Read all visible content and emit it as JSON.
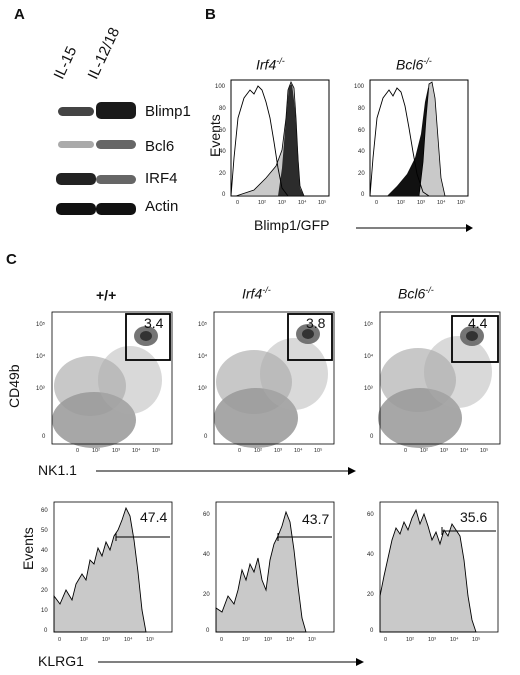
{
  "panels": {
    "a": "A",
    "b": "B",
    "c": "C"
  },
  "blot": {
    "lanes": [
      "IL-15",
      "IL-12/18"
    ],
    "bands": [
      "Blimp1",
      "Bcl6",
      "IRF4",
      "Actin"
    ]
  },
  "histB": {
    "left_title": "Irf4",
    "right_title": "Bcl6",
    "superscript": "-/-",
    "ylabel": "Events",
    "xlabel": "Blimp1/GFP",
    "yticks": [
      "100",
      "80",
      "60",
      "40",
      "20",
      "0"
    ],
    "xticks": [
      "0",
      "10²",
      "10³",
      "10⁴",
      "10⁵"
    ]
  },
  "dotC": {
    "titles": [
      "+/+",
      "Irf4",
      "Bcl6"
    ],
    "superscript": "-/-",
    "ylabel": "CD49b",
    "xlabel": "NK1.1",
    "gate_values": [
      "3.4",
      "3.8",
      "4.4"
    ],
    "yticks": [
      "10⁵",
      "10⁴",
      "10³",
      "0"
    ],
    "xticks": [
      "0",
      "10²",
      "10³",
      "10⁴",
      "10⁵"
    ]
  },
  "histC": {
    "ylabel": "Events",
    "xlabel": "KLRG1",
    "gate_values": [
      "47.4",
      "43.7",
      "35.6"
    ],
    "yticks_1": [
      "60",
      "50",
      "40",
      "30",
      "20",
      "10",
      "0"
    ],
    "yticks_2": [
      "60",
      "40",
      "20",
      "0"
    ],
    "yticks_3": [
      "60",
      "40",
      "20",
      "0"
    ],
    "xticks": [
      "0",
      "10²",
      "10³",
      "10⁴",
      "10⁵"
    ]
  },
  "colors": {
    "fill_gray": "#c9c9c9",
    "dot_dark": "#333333",
    "black": "#000000"
  }
}
